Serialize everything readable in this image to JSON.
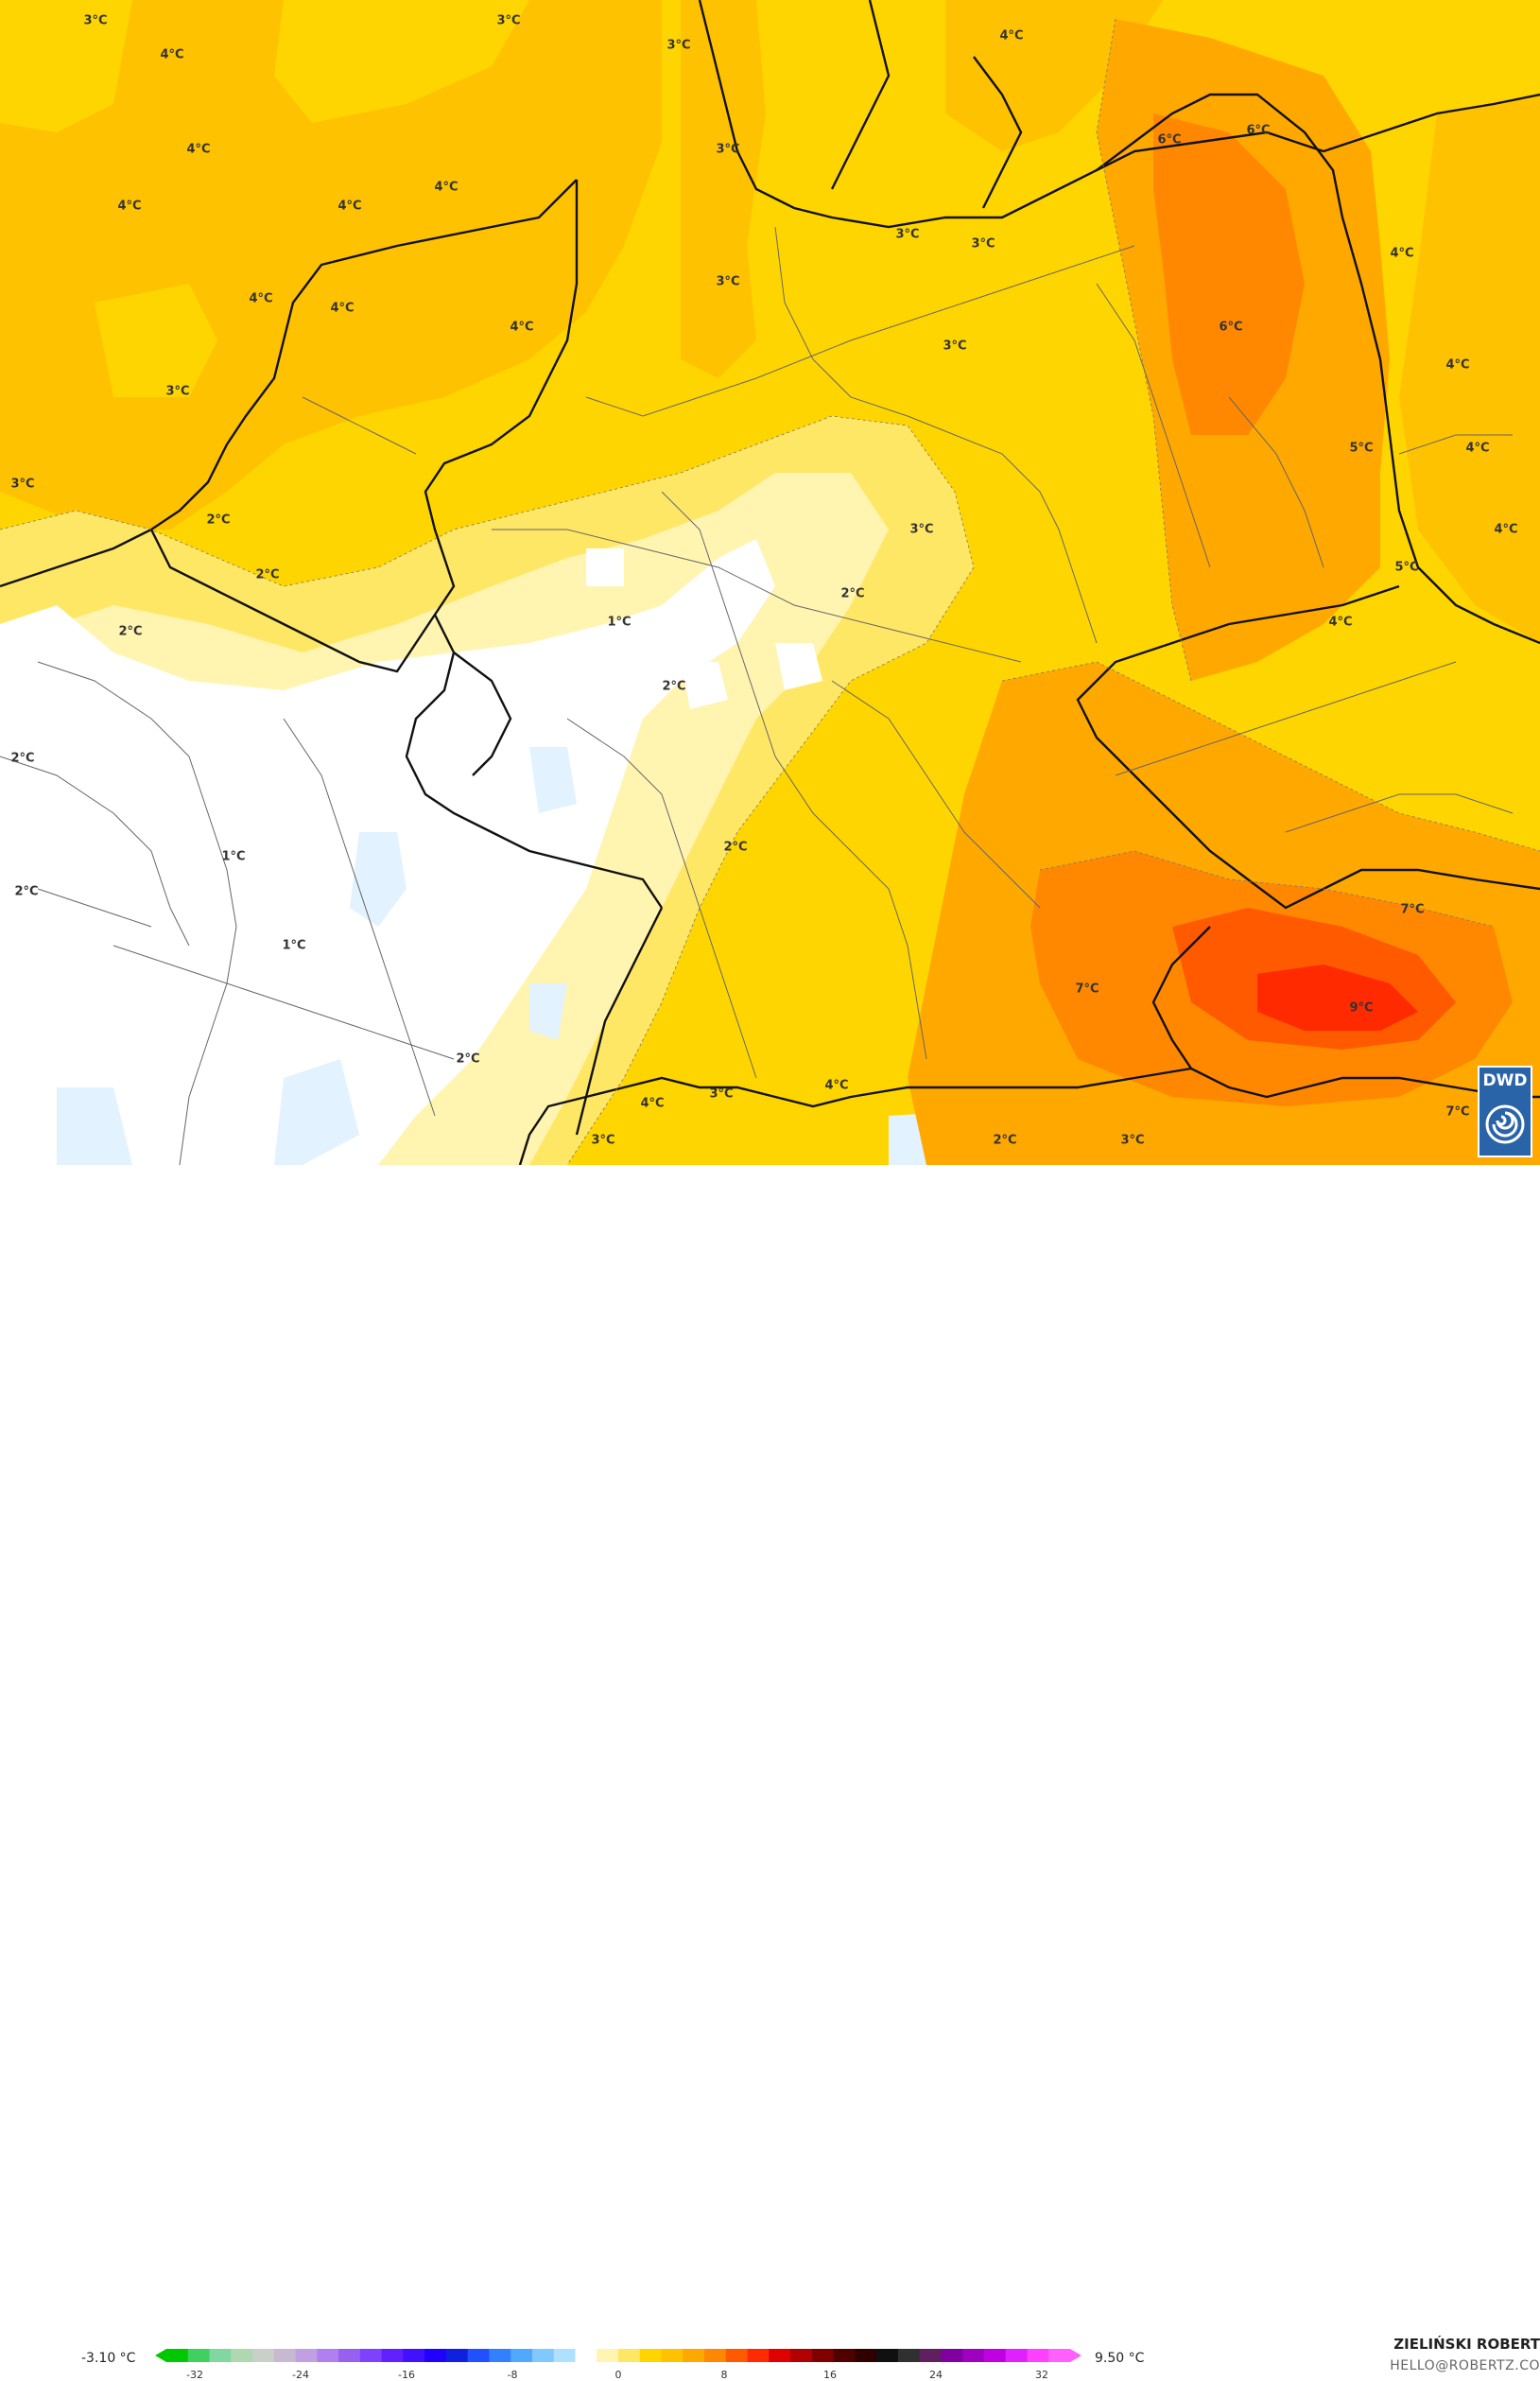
{
  "map": {
    "colors": {
      "white_band": "#ffffff",
      "pale_yellow": "#fff4b0",
      "light_yellow": "#ffe766",
      "yellow": "#ffd500",
      "gold": "#ffc200",
      "orange": "#ffa800",
      "dark_orange": "#ff8800",
      "red_orange": "#ff5a00",
      "red": "#ff2a00",
      "light_blue": "#e2f2ff",
      "border": "#111111",
      "admin_border": "#666666"
    },
    "temperature_labels": [
      "3°C",
      "4°C",
      "3°C",
      "3°C",
      "4°C",
      "4°C",
      "4°C",
      "4°C",
      "3°C",
      "4°C",
      "4°C",
      "6°C",
      "6°C",
      "3°C",
      "3°C",
      "3°C",
      "4°C",
      "4°C",
      "4°C",
      "6°C",
      "3°C",
      "4°C",
      "3°C",
      "5°C",
      "4°C",
      "2°C",
      "3°C",
      "4°C",
      "2°C",
      "3°C",
      "5°C",
      "1°C",
      "2°C",
      "2°C",
      "4°C",
      "2°C",
      "1°C",
      "2°C",
      "2°C",
      "7°C",
      "2°C",
      "1°C",
      "7°C",
      "9°C",
      "4°C",
      "3°C",
      "4°C",
      "2°C",
      "3°C",
      "3°C",
      "2°C",
      "7°C"
    ]
  },
  "logo": {
    "text": "DWD",
    "bg_color": "#2a64a8"
  },
  "legend": {
    "min_label": "-3.10 °C",
    "max_label": "9.50 °C",
    "ticks": [
      "-32",
      "-24",
      "-16",
      "-8",
      "0",
      "8",
      "16",
      "24",
      "32"
    ],
    "colors": [
      "#00c800",
      "#40d060",
      "#80d8a0",
      "#b0d8b0",
      "#c8d0c8",
      "#c8b8d0",
      "#c0a0e0",
      "#b080f0",
      "#9860f0",
      "#8040ff",
      "#6020ff",
      "#4010ff",
      "#2000ff",
      "#1020e0",
      "#2050ff",
      "#3080ff",
      "#50a8ff",
      "#80c8ff",
      "#b0e0ff",
      "#ffffff",
      "#fff4b0",
      "#ffe766",
      "#ffd500",
      "#ffc200",
      "#ffa800",
      "#ff8800",
      "#ff5a00",
      "#ff2a00",
      "#e00000",
      "#b00000",
      "#800000",
      "#500000",
      "#300000",
      "#101010",
      "#303030",
      "#602060",
      "#8000a0",
      "#a000c0",
      "#c000e0",
      "#e020ff",
      "#ff40ff",
      "#ff60ff"
    ]
  },
  "author": {
    "name": "ZIELIŃSKI ROBERT",
    "email": "HELLO@ROBERTZ.CO"
  }
}
